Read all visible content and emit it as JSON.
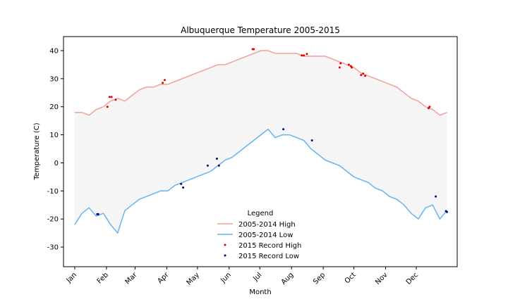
{
  "chart_data": {
    "type": "line",
    "title": "Albuquerque Temperature 2005-2015",
    "xlabel": "Month",
    "ylabel": "Temperature (C)",
    "ylim": [
      -37,
      45
    ],
    "xlim": [
      -10,
      375
    ],
    "yticks": [
      -30,
      -20,
      -10,
      0,
      10,
      20,
      30,
      40
    ],
    "xtick_labels": [
      "Jan",
      "Feb",
      "Mar",
      "Apr",
      "May",
      "Jun",
      "Jul",
      "Aug",
      "Sep",
      "Oct",
      "Nov",
      "Dec"
    ],
    "xtick_days": [
      1,
      32,
      60,
      91,
      121,
      152,
      182,
      213,
      244,
      274,
      305,
      335
    ],
    "grid": false,
    "fill_between": true,
    "legend": {
      "title": "Legend",
      "position": "lower-center",
      "entries": [
        "2005-2014 High",
        "2005-2014 Low",
        "2015 Record High",
        "2015 Record Low"
      ]
    },
    "colors": {
      "high": "#f0a09a",
      "low": "#64b5f0",
      "record_high": "#e00000",
      "record_low": "#000080",
      "fill": "#f5f5f5"
    },
    "series": [
      {
        "name": "2005-2014 High",
        "x": [
          1,
          8,
          15,
          22,
          29,
          36,
          43,
          50,
          57,
          64,
          71,
          78,
          85,
          92,
          99,
          106,
          113,
          120,
          127,
          134,
          141,
          148,
          155,
          162,
          169,
          176,
          183,
          190,
          197,
          204,
          211,
          218,
          225,
          232,
          239,
          246,
          253,
          260,
          267,
          274,
          281,
          288,
          295,
          302,
          309,
          316,
          323,
          330,
          337,
          344,
          351,
          358,
          365
        ],
        "values": [
          18,
          18,
          17,
          19,
          20,
          22,
          23,
          22,
          24,
          26,
          27,
          27,
          28,
          28,
          29,
          30,
          31,
          32,
          33,
          34,
          35,
          35,
          36,
          37,
          38,
          39,
          40,
          40,
          39,
          39,
          39,
          39,
          38,
          38,
          38,
          38,
          37,
          36,
          35,
          34,
          32,
          31,
          30,
          29,
          28,
          27,
          25,
          23,
          22,
          20,
          19,
          17,
          18
        ]
      },
      {
        "name": "2005-2014 Low",
        "x": [
          1,
          8,
          15,
          22,
          29,
          36,
          43,
          50,
          57,
          64,
          71,
          78,
          85,
          92,
          99,
          106,
          113,
          120,
          127,
          134,
          141,
          148,
          155,
          162,
          169,
          176,
          183,
          190,
          197,
          204,
          211,
          218,
          225,
          232,
          239,
          246,
          253,
          260,
          267,
          274,
          281,
          288,
          295,
          302,
          309,
          316,
          323,
          330,
          337,
          344,
          351,
          358,
          365
        ],
        "values": [
          -22,
          -18,
          -16,
          -19,
          -18,
          -22,
          -25,
          -17,
          -15,
          -13,
          -12,
          -11,
          -10,
          -10,
          -8,
          -7,
          -6,
          -5,
          -4,
          -3,
          -1,
          1,
          2,
          4,
          6,
          8,
          10,
          12,
          9,
          10,
          10,
          9,
          8,
          5,
          3,
          1,
          0,
          -1,
          -3,
          -5,
          -6,
          -7,
          -9,
          -10,
          -12,
          -13,
          -15,
          -18,
          -20,
          -16,
          -15,
          -20,
          -17
        ]
      },
      {
        "name": "2015 Record High",
        "x": [
          33,
          35,
          37,
          41,
          87,
          89,
          175,
          176,
          223,
          225,
          228,
          260,
          261,
          269,
          271,
          272,
          281,
          283,
          285,
          347,
          348
        ],
        "values": [
          20,
          23.5,
          23.5,
          22.5,
          28.5,
          29.5,
          40.5,
          40.5,
          38.3,
          38.3,
          38.8,
          34,
          35.5,
          35,
          34.5,
          34,
          31.3,
          31.8,
          31,
          19.5,
          20
        ]
      },
      {
        "name": "2015 Record Low",
        "x": [
          23,
          24,
          105,
          107,
          131,
          140,
          142,
          205,
          233,
          354,
          364,
          365
        ],
        "values": [
          -18.3,
          -18.3,
          -7.5,
          -8.8,
          -1,
          1.5,
          -1,
          12,
          8,
          -12,
          -17.2,
          -17.5
        ]
      }
    ]
  }
}
